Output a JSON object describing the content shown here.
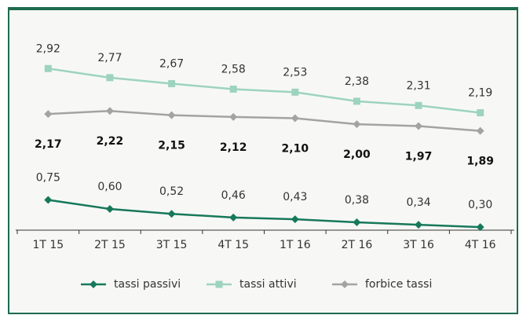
{
  "chart_data": {
    "type": "line",
    "categories": [
      "1T 15",
      "2T 15",
      "3T 15",
      "4T 15",
      "1T 16",
      "2T 16",
      "3T 16",
      "4T 16"
    ],
    "series": [
      {
        "name": "tassi passivi",
        "color": "#17785a",
        "marker": "diamond",
        "values": [
          0.75,
          0.6,
          0.52,
          0.46,
          0.43,
          0.38,
          0.34,
          0.3
        ],
        "value_labels": [
          "0,75",
          "0,60",
          "0,52",
          "0,46",
          "0,43",
          "0,38",
          "0,34",
          "0,30"
        ]
      },
      {
        "name": "tassi attivi",
        "color": "#9dd3bf",
        "marker": "square",
        "values": [
          2.92,
          2.77,
          2.67,
          2.58,
          2.53,
          2.38,
          2.31,
          2.19
        ],
        "value_labels": [
          "2,92",
          "2,77",
          "2,67",
          "2,58",
          "2,53",
          "2,38",
          "2,31",
          "2,19"
        ]
      },
      {
        "name": "forbice tassi",
        "color": "#a3a3a3",
        "marker": "diamond",
        "values": [
          2.17,
          2.22,
          2.15,
          2.12,
          2.1,
          2.0,
          1.97,
          1.89
        ],
        "value_labels": [
          "2,17",
          "2,22",
          "2,15",
          "2,12",
          "2,10",
          "2,00",
          "1,97",
          "1,89"
        ]
      }
    ],
    "ylim": [
      0.25,
      3.3
    ],
    "grid": false,
    "legend": "bottom"
  }
}
